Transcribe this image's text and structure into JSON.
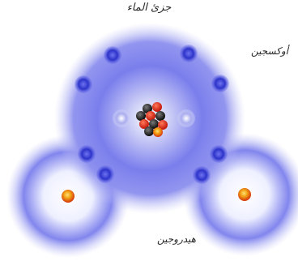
{
  "diagram": {
    "title": "جزئ الماء",
    "labels": {
      "oxygen": "أوكسجين",
      "hydrogen": "هيدروجين"
    },
    "colors": {
      "electron_cloud": "#3b3fe0",
      "electron": "#2a2fc8",
      "inner_electron": "#b9bcf2",
      "proton": "#e22b1c",
      "neutron": "#222222",
      "hydrogen_nucleus": "#f2a516"
    }
  }
}
